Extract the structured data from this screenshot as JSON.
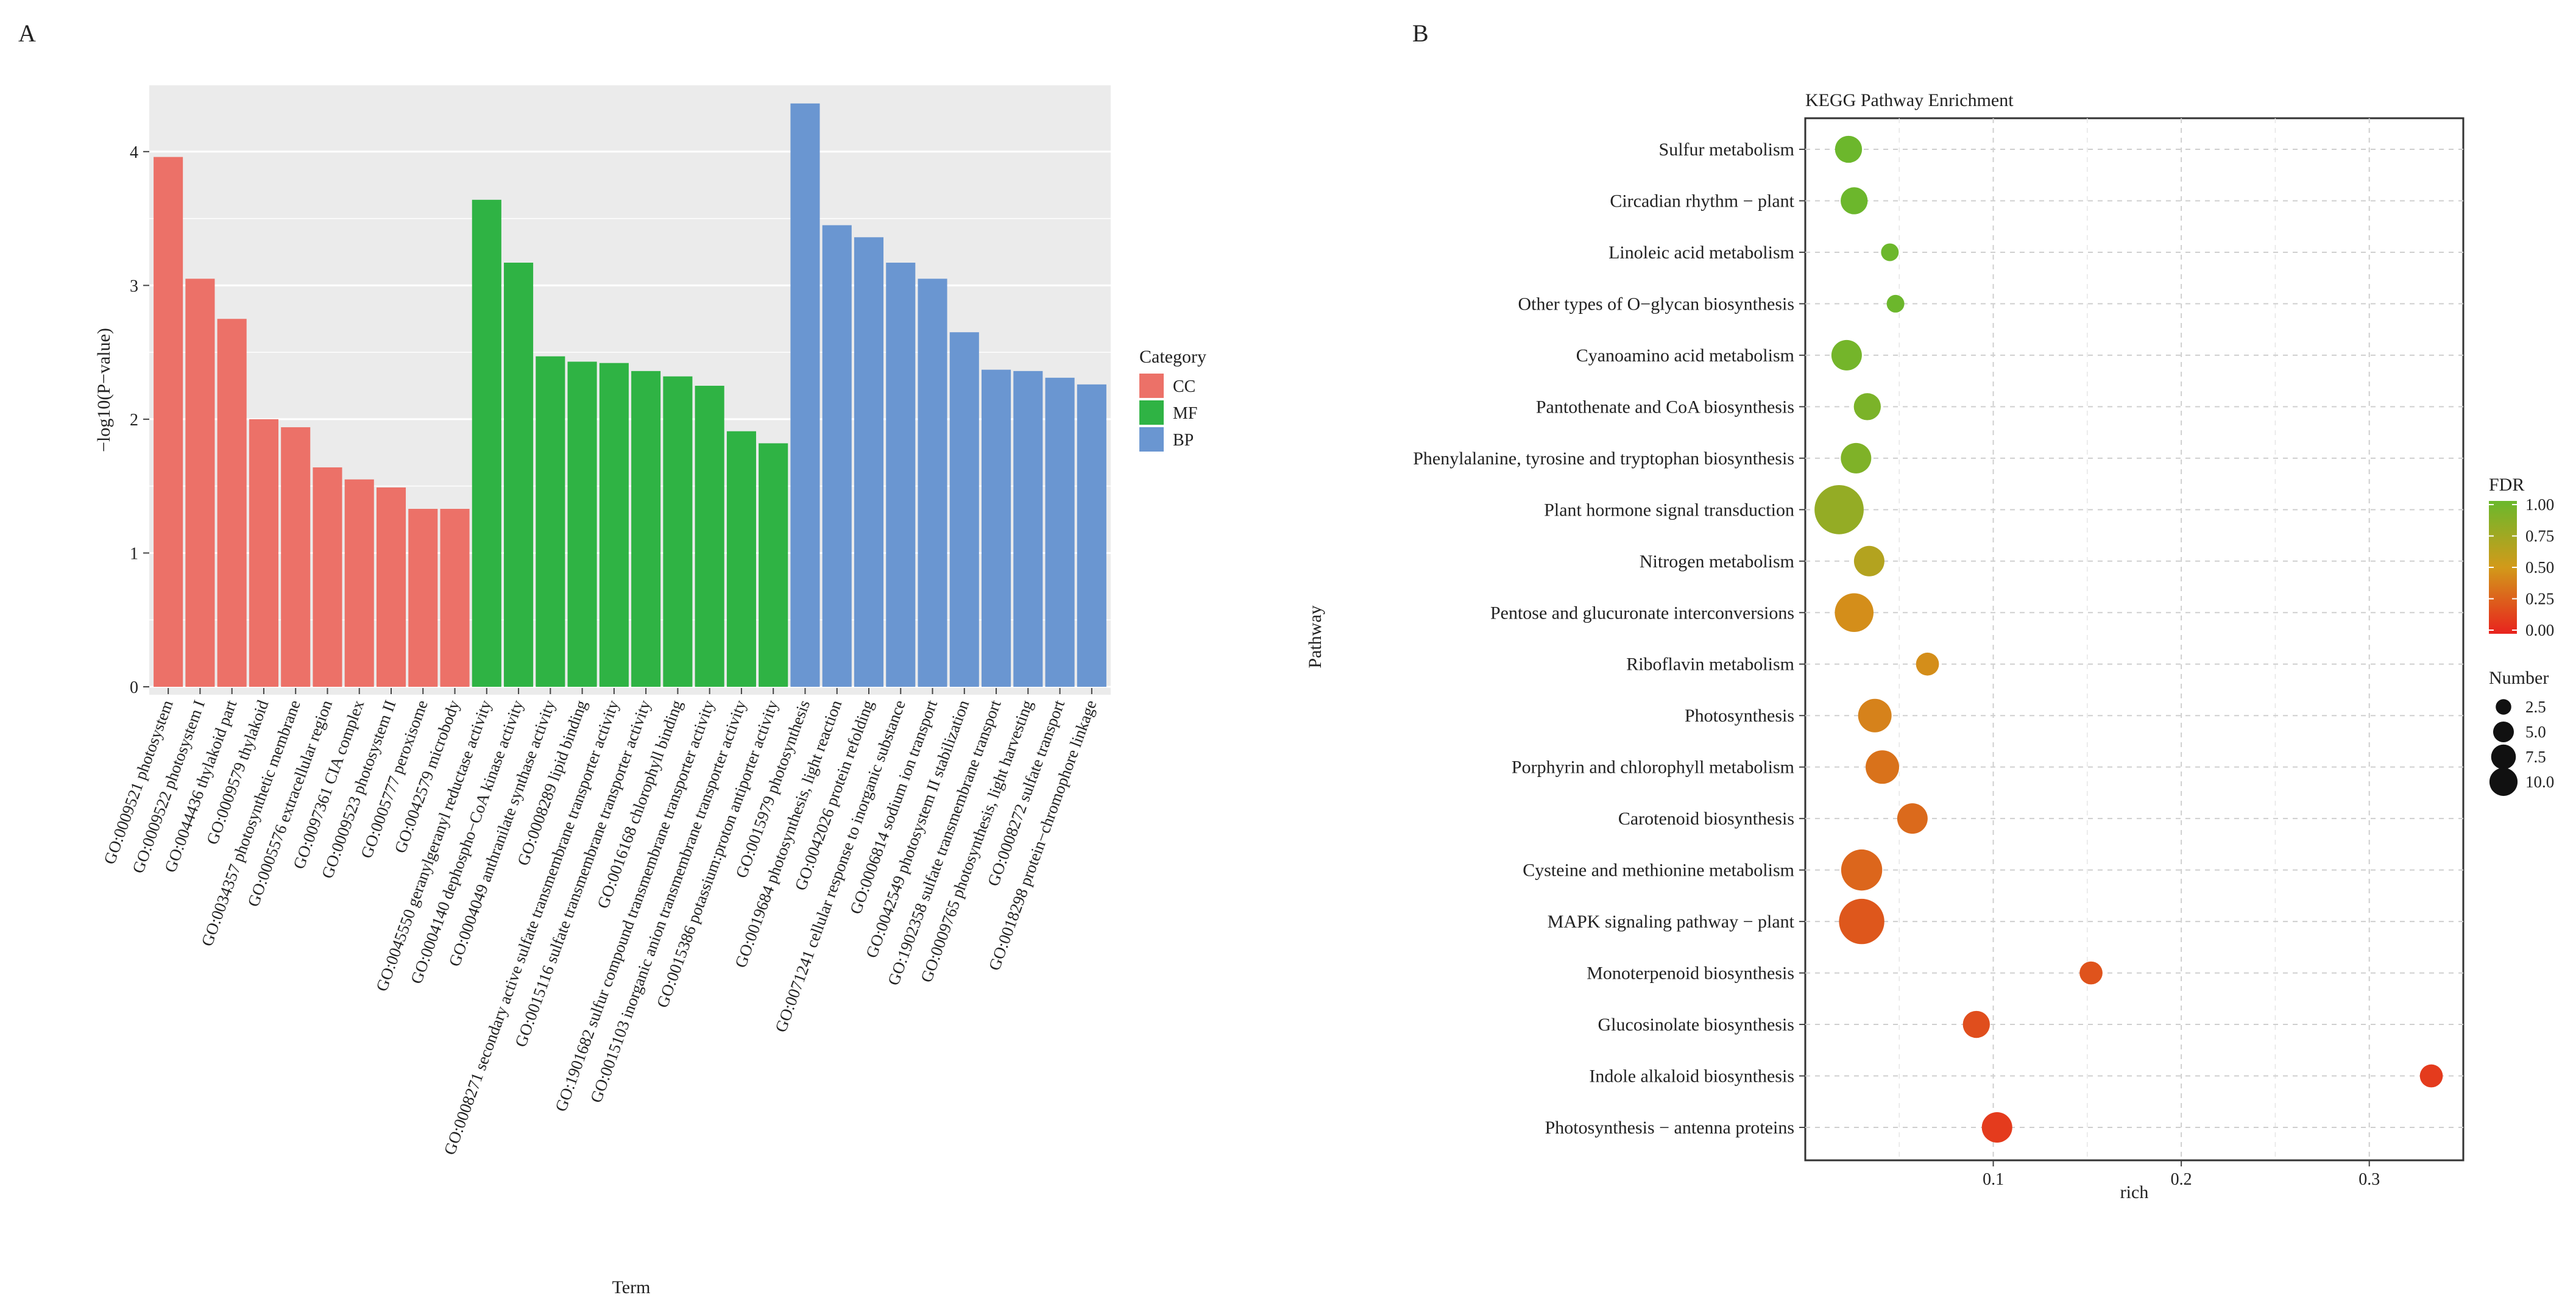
{
  "panel_labels": {
    "a": "A",
    "b": "B"
  },
  "chart_data": [
    {
      "type": "bar",
      "title": "",
      "xlabel": "Term",
      "ylabel": "−log10(P−value)",
      "ylim": [
        0,
        4.45
      ],
      "yticks": [
        0,
        1,
        2,
        3,
        4
      ],
      "grid": true,
      "legend": {
        "title": "Category",
        "position": "right",
        "items": [
          {
            "name": "CC",
            "color": "#ec7168"
          },
          {
            "name": "MF",
            "color": "#2fb344"
          },
          {
            "name": "BP",
            "color": "#6a96d1"
          }
        ]
      },
      "bars": [
        {
          "term": "GO:0009521 photosystem",
          "value": 3.96,
          "category": "CC"
        },
        {
          "term": "GO:0009522 photosystem I",
          "value": 3.05,
          "category": "CC"
        },
        {
          "term": "GO:0044436 thylakoid part",
          "value": 2.75,
          "category": "CC"
        },
        {
          "term": "GO:0009579 thylakoid",
          "value": 2.0,
          "category": "CC"
        },
        {
          "term": "GO:0034357 photosynthetic membrane",
          "value": 1.94,
          "category": "CC"
        },
        {
          "term": "GO:0005576 extracellular region",
          "value": 1.64,
          "category": "CC"
        },
        {
          "term": "GO:0097361 CIA complex",
          "value": 1.55,
          "category": "CC"
        },
        {
          "term": "GO:0009523 photosystem II",
          "value": 1.49,
          "category": "CC"
        },
        {
          "term": "GO:0005777 peroxisome",
          "value": 1.33,
          "category": "CC"
        },
        {
          "term": "GO:0042579 microbody",
          "value": 1.33,
          "category": "CC"
        },
        {
          "term": "GO:0045550 geranylgeranyl reductase activity",
          "value": 3.64,
          "category": "MF"
        },
        {
          "term": "GO:0004140 dephospho−CoA kinase activity",
          "value": 3.17,
          "category": "MF"
        },
        {
          "term": "GO:0004049 anthranilate synthase activity",
          "value": 2.47,
          "category": "MF"
        },
        {
          "term": "GO:0008289 lipid binding",
          "value": 2.43,
          "category": "MF"
        },
        {
          "term": "GO:0008271 secondary active sulfate transmembrane transporter activity",
          "value": 2.42,
          "category": "MF"
        },
        {
          "term": "GO:0015116 sulfate transmembrane transporter activity",
          "value": 2.36,
          "category": "MF"
        },
        {
          "term": "GO:0016168 chlorophyll binding",
          "value": 2.32,
          "category": "MF"
        },
        {
          "term": "GO:1901682 sulfur compound transmembrane transporter activity",
          "value": 2.25,
          "category": "MF"
        },
        {
          "term": "GO:0015103 inorganic anion transmembrane transporter activity",
          "value": 1.91,
          "category": "MF"
        },
        {
          "term": "GO:0015386 potassium:proton antiporter activity",
          "value": 1.82,
          "category": "MF"
        },
        {
          "term": "GO:0015979 photosynthesis",
          "value": 4.36,
          "category": "BP"
        },
        {
          "term": "GO:0019684 photosynthesis, light reaction",
          "value": 3.45,
          "category": "BP"
        },
        {
          "term": "GO:0042026 protein refolding",
          "value": 3.36,
          "category": "BP"
        },
        {
          "term": "GO:0071241 cellular response to inorganic substance",
          "value": 3.17,
          "category": "BP"
        },
        {
          "term": "GO:0006814 sodium ion transport",
          "value": 3.05,
          "category": "BP"
        },
        {
          "term": "GO:0042549 photosystem II stabilization",
          "value": 2.65,
          "category": "BP"
        },
        {
          "term": "GO:1902358 sulfate transmembrane transport",
          "value": 2.37,
          "category": "BP"
        },
        {
          "term": "GO:0009765 photosynthesis, light harvesting",
          "value": 2.36,
          "category": "BP"
        },
        {
          "term": "GO:0008272 sulfate transport",
          "value": 2.31,
          "category": "BP"
        },
        {
          "term": "GO:0018298 protein−chromophore linkage",
          "value": 2.26,
          "category": "BP"
        }
      ]
    },
    {
      "type": "scatter",
      "title": "KEGG Pathway Enrichment",
      "xlabel": "rich",
      "ylabel": "Pathway",
      "xlim": [
        0,
        0.35
      ],
      "xticks": [
        0.1,
        0.2,
        0.3
      ],
      "grid": true,
      "color_legend": {
        "title": "FDR",
        "ticks": [
          "1.00",
          "0.75",
          "0.50",
          "0.25",
          "0.00"
        ],
        "colors": [
          "#e8231e",
          "#d29a1a",
          "#6ab82c"
        ]
      },
      "size_legend": {
        "title": "Number",
        "items": [
          {
            "label": "2.5",
            "value": 2.5
          },
          {
            "label": "5.0",
            "value": 5.0
          },
          {
            "label": "7.5",
            "value": 7.5
          },
          {
            "label": "10.0",
            "value": 10.0
          }
        ]
      },
      "points": [
        {
          "pathway": "Sulfur metabolism",
          "rich": 0.023,
          "number": 3,
          "fdr": 0.99
        },
        {
          "pathway": "Circadian rhythm − plant",
          "rich": 0.026,
          "number": 3,
          "fdr": 0.99
        },
        {
          "pathway": "Linoleic acid metabolism",
          "rich": 0.045,
          "number": 1,
          "fdr": 0.99
        },
        {
          "pathway": "Other types of O−glycan biosynthesis",
          "rich": 0.048,
          "number": 1,
          "fdr": 0.99
        },
        {
          "pathway": "Cyanoamino acid metabolism",
          "rich": 0.022,
          "number": 4,
          "fdr": 0.95
        },
        {
          "pathway": "Pantothenate and CoA biosynthesis",
          "rich": 0.033,
          "number": 3,
          "fdr": 0.92
        },
        {
          "pathway": "Phenylalanine, tyrosine and tryptophan biosynthesis",
          "rich": 0.027,
          "number": 4,
          "fdr": 0.9
        },
        {
          "pathway": "Plant hormone signal transduction",
          "rich": 0.018,
          "number": 12,
          "fdr": 0.8
        },
        {
          "pathway": "Nitrogen metabolism",
          "rich": 0.034,
          "number": 4,
          "fdr": 0.65
        },
        {
          "pathway": "Pentose and glucuronate interconversions",
          "rich": 0.026,
          "number": 7,
          "fdr": 0.45
        },
        {
          "pathway": "Riboflavin metabolism",
          "rich": 0.065,
          "number": 2,
          "fdr": 0.45
        },
        {
          "pathway": "Photosynthesis",
          "rich": 0.037,
          "number": 5,
          "fdr": 0.4
        },
        {
          "pathway": "Porphyrin and chlorophyll metabolism",
          "rich": 0.041,
          "number": 5,
          "fdr": 0.33
        },
        {
          "pathway": "Carotenoid biosynthesis",
          "rich": 0.057,
          "number": 4,
          "fdr": 0.3
        },
        {
          "pathway": "Cysteine and methionine metabolism",
          "rich": 0.03,
          "number": 8,
          "fdr": 0.28
        },
        {
          "pathway": "MAPK signaling pathway − plant",
          "rich": 0.03,
          "number": 10,
          "fdr": 0.22
        },
        {
          "pathway": "Monoterpenoid biosynthesis",
          "rich": 0.152,
          "number": 2,
          "fdr": 0.2
        },
        {
          "pathway": "Glucosinolate biosynthesis",
          "rich": 0.091,
          "number": 3,
          "fdr": 0.18
        },
        {
          "pathway": "Indole alkaloid biosynthesis",
          "rich": 0.333,
          "number": 2,
          "fdr": 0.1
        },
        {
          "pathway": "Photosynthesis − antenna proteins",
          "rich": 0.102,
          "number": 4,
          "fdr": 0.1
        }
      ]
    }
  ]
}
